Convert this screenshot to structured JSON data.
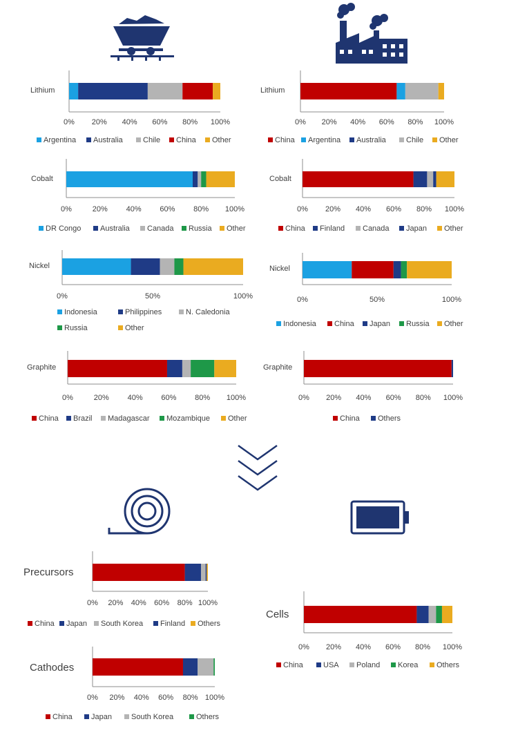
{
  "colors": {
    "china": "#c00000",
    "light_blue": "#1ba1e2",
    "dark_blue": "#1f3b86",
    "grey": "#b4b4b4",
    "green": "#1e9848",
    "orange": "#eaab20",
    "icon_navy": "#1f3570"
  },
  "icons": [
    "mine-cart-icon",
    "factory-icon",
    "chevrons-down-icon",
    "copper-coil-icon",
    "battery-icon"
  ],
  "chart_data": [
    {
      "id": "mining-lithium",
      "type": "bar",
      "orientation": "horizontal",
      "stacked": true,
      "categories": [
        "Lithium"
      ],
      "series": [
        {
          "name": "Argentina",
          "values": [
            6
          ]
        },
        {
          "name": "Australia",
          "values": [
            46
          ]
        },
        {
          "name": "Chile",
          "values": [
            23
          ]
        },
        {
          "name": "China",
          "values": [
            20
          ]
        },
        {
          "name": "Other",
          "values": [
            5
          ]
        }
      ],
      "xticks": [
        "0%",
        "20%",
        "40%",
        "60%",
        "80%",
        "100%"
      ],
      "xlim": [
        0,
        100
      ],
      "legend": "bottom"
    },
    {
      "id": "refining-lithium",
      "type": "bar",
      "orientation": "horizontal",
      "stacked": true,
      "categories": [
        "Lithium"
      ],
      "series": [
        {
          "name": "China",
          "values": [
            67
          ]
        },
        {
          "name": "Argentina",
          "values": [
            6
          ]
        },
        {
          "name": "Australia",
          "values": [
            0
          ]
        },
        {
          "name": "Chile",
          "values": [
            23
          ]
        },
        {
          "name": "Other",
          "values": [
            4
          ]
        }
      ],
      "xticks": [
        "0%",
        "20%",
        "40%",
        "60%",
        "80%",
        "100%"
      ],
      "xlim": [
        0,
        100
      ],
      "legend": "bottom"
    },
    {
      "id": "mining-cobalt",
      "type": "bar",
      "orientation": "horizontal",
      "stacked": true,
      "categories": [
        "Cobalt"
      ],
      "series": [
        {
          "name": "DR Congo",
          "values": [
            75
          ]
        },
        {
          "name": "Australia",
          "values": [
            3
          ]
        },
        {
          "name": "Canada",
          "values": [
            2
          ]
        },
        {
          "name": "Russia",
          "values": [
            3
          ]
        },
        {
          "name": "Other",
          "values": [
            17
          ]
        }
      ],
      "xticks": [
        "0%",
        "20%",
        "40%",
        "60%",
        "80%",
        "100%"
      ],
      "xlim": [
        0,
        100
      ],
      "legend": "bottom"
    },
    {
      "id": "refining-cobalt",
      "type": "bar",
      "orientation": "horizontal",
      "stacked": true,
      "categories": [
        "Cobalt"
      ],
      "series": [
        {
          "name": "China",
          "values": [
            73
          ]
        },
        {
          "name": "Finland",
          "values": [
            9
          ]
        },
        {
          "name": "Canada",
          "values": [
            4
          ]
        },
        {
          "name": "Japan",
          "values": [
            2
          ]
        },
        {
          "name": "Other",
          "values": [
            12
          ]
        }
      ],
      "xticks": [
        "0%",
        "20%",
        "40%",
        "60%",
        "80%",
        "100%"
      ],
      "xlim": [
        0,
        100
      ],
      "legend": "bottom"
    },
    {
      "id": "mining-nickel",
      "type": "bar",
      "orientation": "horizontal",
      "stacked": true,
      "categories": [
        "Nickel"
      ],
      "series": [
        {
          "name": "Indonesia",
          "values": [
            38
          ]
        },
        {
          "name": "Philippines",
          "values": [
            16
          ]
        },
        {
          "name": "N. Caledonia",
          "values": [
            8
          ]
        },
        {
          "name": "Russia",
          "values": [
            5
          ]
        },
        {
          "name": "Other",
          "values": [
            33
          ]
        }
      ],
      "xticks": [
        "0%",
        "50%",
        "100%"
      ],
      "xlim": [
        0,
        100
      ],
      "legend": "bottom"
    },
    {
      "id": "refining-nickel",
      "type": "bar",
      "orientation": "horizontal",
      "stacked": true,
      "categories": [
        "Nickel"
      ],
      "series": [
        {
          "name": "Indonesia",
          "values": [
            33
          ]
        },
        {
          "name": "China",
          "values": [
            28
          ]
        },
        {
          "name": "Japan",
          "values": [
            5
          ]
        },
        {
          "name": "Russia",
          "values": [
            4
          ]
        },
        {
          "name": "Other",
          "values": [
            30
          ]
        }
      ],
      "xticks": [
        "0%",
        "50%",
        "100%"
      ],
      "xlim": [
        0,
        100
      ],
      "legend": "bottom"
    },
    {
      "id": "mining-graphite",
      "type": "bar",
      "orientation": "horizontal",
      "stacked": true,
      "categories": [
        "Graphite"
      ],
      "series": [
        {
          "name": "China",
          "values": [
            59
          ]
        },
        {
          "name": "Brazil",
          "values": [
            9
          ]
        },
        {
          "name": "Madagascar",
          "values": [
            5
          ]
        },
        {
          "name": "Mozambique",
          "values": [
            14
          ]
        },
        {
          "name": "Other",
          "values": [
            13
          ]
        }
      ],
      "xticks": [
        "0%",
        "20%",
        "40%",
        "60%",
        "80%",
        "100%"
      ],
      "xlim": [
        0,
        100
      ],
      "legend": "bottom"
    },
    {
      "id": "refining-graphite",
      "type": "bar",
      "orientation": "horizontal",
      "stacked": true,
      "categories": [
        "Graphite"
      ],
      "series": [
        {
          "name": "China",
          "values": [
            99
          ]
        },
        {
          "name": "Others",
          "values": [
            1
          ]
        }
      ],
      "xticks": [
        "0%",
        "20%",
        "40%",
        "60%",
        "80%",
        "100%"
      ],
      "xlim": [
        0,
        100
      ],
      "legend": "bottom"
    },
    {
      "id": "precursors",
      "type": "bar",
      "orientation": "horizontal",
      "stacked": true,
      "categories": [
        "Precursors"
      ],
      "series": [
        {
          "name": "China",
          "values": [
            80
          ]
        },
        {
          "name": "Japan",
          "values": [
            14
          ]
        },
        {
          "name": "South Korea",
          "values": [
            4
          ]
        },
        {
          "name": "Finland",
          "values": [
            1
          ]
        },
        {
          "name": "Others",
          "values": [
            1
          ]
        }
      ],
      "xticks": [
        "0%",
        "20%",
        "40%",
        "60%",
        "80%",
        "100%"
      ],
      "xlim": [
        0,
        100
      ],
      "legend": "bottom"
    },
    {
      "id": "cathodes",
      "type": "bar",
      "orientation": "horizontal",
      "stacked": true,
      "categories": [
        "Cathodes"
      ],
      "series": [
        {
          "name": "China",
          "values": [
            74
          ]
        },
        {
          "name": "Japan",
          "values": [
            12
          ]
        },
        {
          "name": "South Korea",
          "values": [
            13
          ]
        },
        {
          "name": "Others",
          "values": [
            1
          ]
        }
      ],
      "xticks": [
        "0%",
        "20%",
        "40%",
        "60%",
        "80%",
        "100%"
      ],
      "xlim": [
        0,
        100
      ],
      "legend": "bottom"
    },
    {
      "id": "cells",
      "type": "bar",
      "orientation": "horizontal",
      "stacked": true,
      "categories": [
        "Cells"
      ],
      "series": [
        {
          "name": "China",
          "values": [
            76
          ]
        },
        {
          "name": "USA",
          "values": [
            8
          ]
        },
        {
          "name": "Poland",
          "values": [
            5
          ]
        },
        {
          "name": "Korea",
          "values": [
            4
          ]
        },
        {
          "name": "Others",
          "values": [
            7
          ]
        }
      ],
      "xticks": [
        "0%",
        "20%",
        "40%",
        "60%",
        "80%",
        "100%"
      ],
      "xlim": [
        0,
        100
      ],
      "legend": "bottom"
    }
  ]
}
